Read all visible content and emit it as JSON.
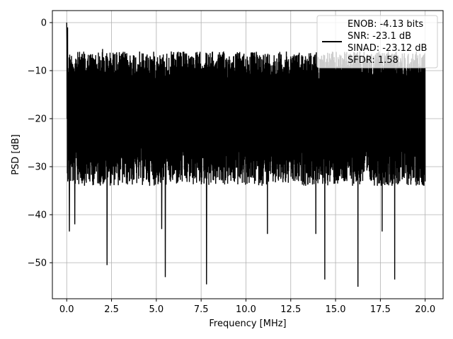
{
  "chart_data": {
    "type": "line",
    "title": "",
    "xlabel": "Frequency [MHz]",
    "ylabel": "PSD [dB]",
    "xlim": [
      -0.8,
      21.0
    ],
    "ylim": [
      -57.5,
      2.5
    ],
    "xticks": [
      0.0,
      2.5,
      5.0,
      7.5,
      10.0,
      12.5,
      15.0,
      17.5,
      20.0
    ],
    "xtick_labels": [
      "0.0",
      "2.5",
      "5.0",
      "7.5",
      "10.0",
      "12.5",
      "15.0",
      "17.5",
      "20.0"
    ],
    "yticks": [
      0,
      -10,
      -20,
      -30,
      -40,
      -50
    ],
    "ytick_labels": [
      "0",
      "−10",
      "−20",
      "−30",
      "−40",
      "−50"
    ],
    "grid": true,
    "legend_position": "top-right",
    "line_color": "#000000",
    "series": [
      {
        "name": "ENOB: -4.13 bits\nSNR: -23.1 dB\nSINAD: -23.12 dB\nSFDR: 1.58",
        "legend_lines": [
          "ENOB: -4.13 bits",
          "SNR: -23.1 dB",
          "SINAD: -23.12 dB",
          "SFDR: 1.58"
        ],
        "description": "noise-like PSD, dense band roughly -7 to -33 dB across 0-20 MHz",
        "x_range": [
          0.0,
          20.0
        ],
        "peak": {
          "x": 0.0,
          "y": 0.0
        },
        "band_upper": -8,
        "band_lower": -32,
        "dips": [
          {
            "x": 0.15,
            "y": -43.5
          },
          {
            "x": 0.45,
            "y": -42
          },
          {
            "x": 2.25,
            "y": -50.5
          },
          {
            "x": 5.5,
            "y": -53
          },
          {
            "x": 5.3,
            "y": -43
          },
          {
            "x": 7.8,
            "y": -54.5
          },
          {
            "x": 11.2,
            "y": -44
          },
          {
            "x": 14.4,
            "y": -53.5
          },
          {
            "x": 16.25,
            "y": -55
          },
          {
            "x": 18.3,
            "y": -53.5
          },
          {
            "x": 13.9,
            "y": -44
          },
          {
            "x": 17.6,
            "y": -43.5
          }
        ],
        "spikes": [
          {
            "x": 0.05,
            "y": -1
          },
          {
            "x": 1.0,
            "y": -6.5
          },
          {
            "x": 2.0,
            "y": -5.5
          },
          {
            "x": 2.7,
            "y": -6.5
          },
          {
            "x": 3.3,
            "y": -7.0
          },
          {
            "x": 6.4,
            "y": -7.0
          },
          {
            "x": 8.3,
            "y": -8.5
          },
          {
            "x": 12.0,
            "y": -9.5
          }
        ]
      }
    ]
  }
}
